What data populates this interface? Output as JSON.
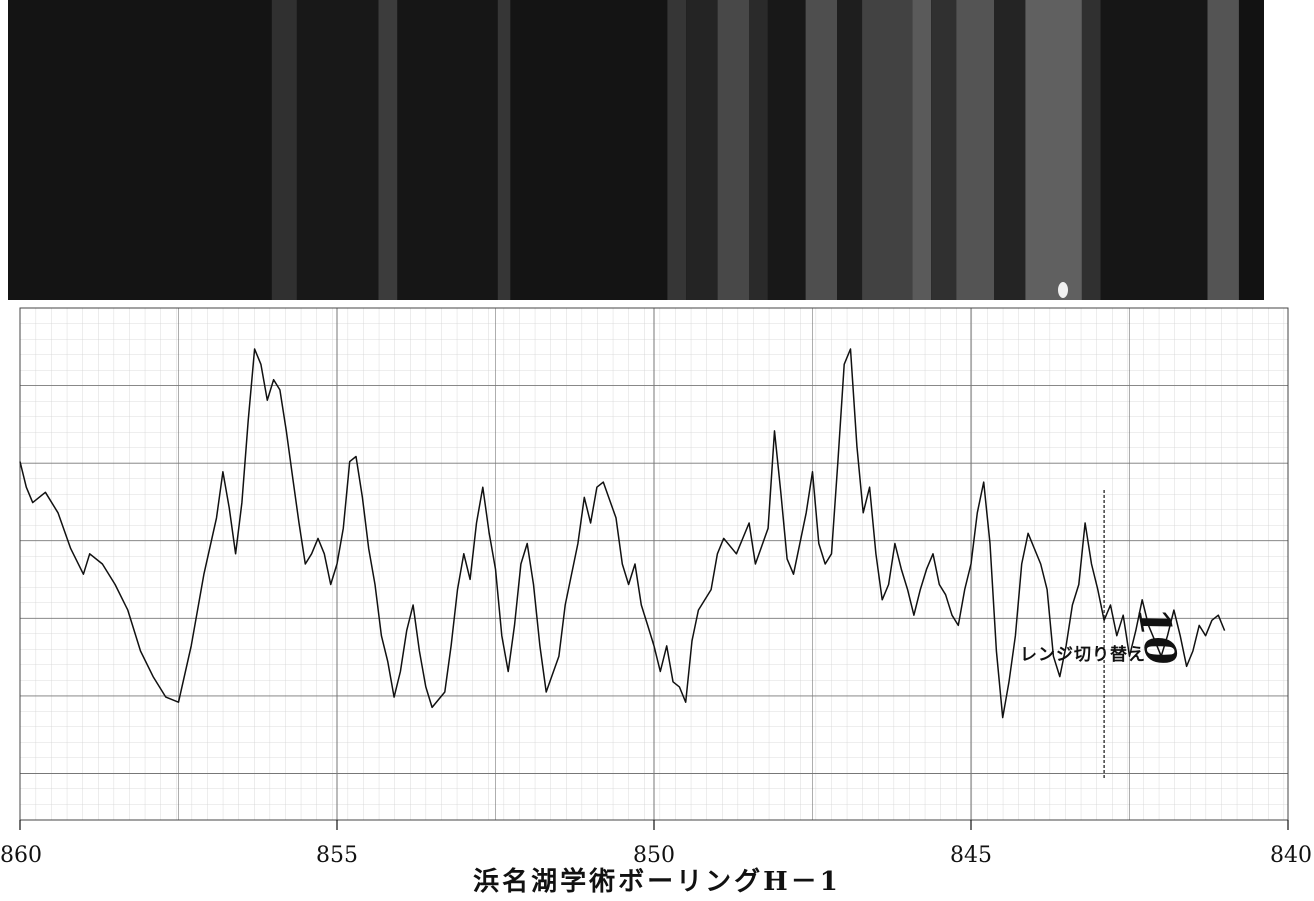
{
  "colors": {
    "paper": "#ffffff",
    "grid_minor": "#d2d2d2",
    "grid_major": "#777777",
    "trace": "#111111",
    "core_dark": "#121212",
    "core_light": "#5c5c5c"
  },
  "core_photo": {
    "bands": [
      {
        "x": 860.0,
        "w": 4.2,
        "tone": 0.02
      },
      {
        "x": 855.8,
        "w": 0.4,
        "tone": 0.25
      },
      {
        "x": 855.4,
        "w": 1.3,
        "tone": 0.05
      },
      {
        "x": 854.1,
        "w": 0.3,
        "tone": 0.35
      },
      {
        "x": 853.8,
        "w": 1.6,
        "tone": 0.03
      },
      {
        "x": 852.2,
        "w": 0.2,
        "tone": 0.3
      },
      {
        "x": 852.0,
        "w": 2.5,
        "tone": 0.02
      },
      {
        "x": 849.5,
        "w": 0.3,
        "tone": 0.3
      },
      {
        "x": 849.2,
        "w": 0.5,
        "tone": 0.15
      },
      {
        "x": 848.7,
        "w": 0.5,
        "tone": 0.45
      },
      {
        "x": 848.2,
        "w": 0.3,
        "tone": 0.2
      },
      {
        "x": 847.9,
        "w": 0.6,
        "tone": 0.05
      },
      {
        "x": 847.3,
        "w": 0.5,
        "tone": 0.5
      },
      {
        "x": 846.8,
        "w": 0.4,
        "tone": 0.1
      },
      {
        "x": 846.4,
        "w": 0.8,
        "tone": 0.4
      },
      {
        "x": 845.6,
        "w": 0.3,
        "tone": 0.6
      },
      {
        "x": 845.3,
        "w": 0.4,
        "tone": 0.25
      },
      {
        "x": 844.9,
        "w": 0.6,
        "tone": 0.55
      },
      {
        "x": 844.3,
        "w": 0.5,
        "tone": 0.15
      },
      {
        "x": 843.8,
        "w": 0.9,
        "tone": 0.65
      },
      {
        "x": 842.9,
        "w": 0.3,
        "tone": 0.25
      },
      {
        "x": 842.6,
        "w": 1.7,
        "tone": 0.03
      },
      {
        "x": 840.9,
        "w": 0.5,
        "tone": 0.55
      }
    ]
  },
  "chart_data": {
    "type": "line",
    "x_axis": {
      "ticks": [
        860,
        855,
        850,
        845,
        840
      ],
      "tick_labels": [
        "860",
        "855",
        "850",
        "845",
        "840"
      ],
      "reversed": true,
      "range": [
        860,
        840
      ]
    },
    "y_range": [
      0,
      10
    ],
    "title": "浜名湖学術ボーリングH－1",
    "annotation": "レンジ切り替え",
    "handwritten_mark": "10",
    "range_switch_x": 842.9,
    "series": [
      {
        "points": [
          [
            860.0,
            7.0
          ],
          [
            859.9,
            6.5
          ],
          [
            859.8,
            6.2
          ],
          [
            859.6,
            6.4
          ],
          [
            859.4,
            6.0
          ],
          [
            859.2,
            5.3
          ],
          [
            859.0,
            4.8
          ],
          [
            858.9,
            5.2
          ],
          [
            858.7,
            5.0
          ],
          [
            858.5,
            4.6
          ],
          [
            858.3,
            4.1
          ],
          [
            858.1,
            3.3
          ],
          [
            857.9,
            2.8
          ],
          [
            857.7,
            2.4
          ],
          [
            857.5,
            2.3
          ],
          [
            857.3,
            3.4
          ],
          [
            857.1,
            4.8
          ],
          [
            856.9,
            5.9
          ],
          [
            856.8,
            6.8
          ],
          [
            856.7,
            6.1
          ],
          [
            856.6,
            5.2
          ],
          [
            856.5,
            6.2
          ],
          [
            856.4,
            7.8
          ],
          [
            856.3,
            9.2
          ],
          [
            856.2,
            8.9
          ],
          [
            856.1,
            8.2
          ],
          [
            856.0,
            8.6
          ],
          [
            855.9,
            8.4
          ],
          [
            855.8,
            7.6
          ],
          [
            855.7,
            6.7
          ],
          [
            855.6,
            5.8
          ],
          [
            855.5,
            5.0
          ],
          [
            855.4,
            5.2
          ],
          [
            855.3,
            5.5
          ],
          [
            855.2,
            5.2
          ],
          [
            855.1,
            4.6
          ],
          [
            855.0,
            5.0
          ],
          [
            854.9,
            5.7
          ],
          [
            854.8,
            7.0
          ],
          [
            854.7,
            7.1
          ],
          [
            854.6,
            6.3
          ],
          [
            854.5,
            5.3
          ],
          [
            854.4,
            4.6
          ],
          [
            854.3,
            3.6
          ],
          [
            854.2,
            3.1
          ],
          [
            854.1,
            2.4
          ],
          [
            854.0,
            2.9
          ],
          [
            853.9,
            3.7
          ],
          [
            853.8,
            4.2
          ],
          [
            853.7,
            3.3
          ],
          [
            853.6,
            2.6
          ],
          [
            853.5,
            2.2
          ],
          [
            853.3,
            2.5
          ],
          [
            853.2,
            3.4
          ],
          [
            853.1,
            4.5
          ],
          [
            853.0,
            5.2
          ],
          [
            852.9,
            4.7
          ],
          [
            852.8,
            5.8
          ],
          [
            852.7,
            6.5
          ],
          [
            852.6,
            5.6
          ],
          [
            852.5,
            4.9
          ],
          [
            852.4,
            3.6
          ],
          [
            852.3,
            2.9
          ],
          [
            852.2,
            3.8
          ],
          [
            852.1,
            5.0
          ],
          [
            852.0,
            5.4
          ],
          [
            851.9,
            4.6
          ],
          [
            851.8,
            3.4
          ],
          [
            851.7,
            2.5
          ],
          [
            851.5,
            3.2
          ],
          [
            851.4,
            4.2
          ],
          [
            851.2,
            5.4
          ],
          [
            851.1,
            6.3
          ],
          [
            851.0,
            5.8
          ],
          [
            850.9,
            6.5
          ],
          [
            850.8,
            6.6
          ],
          [
            850.6,
            5.9
          ],
          [
            850.5,
            5.0
          ],
          [
            850.4,
            4.6
          ],
          [
            850.3,
            5.0
          ],
          [
            850.2,
            4.2
          ],
          [
            850.1,
            3.8
          ],
          [
            850.0,
            3.4
          ],
          [
            849.9,
            2.9
          ],
          [
            849.8,
            3.4
          ],
          [
            849.7,
            2.7
          ],
          [
            849.6,
            2.6
          ],
          [
            849.5,
            2.3
          ],
          [
            849.4,
            3.5
          ],
          [
            849.3,
            4.1
          ],
          [
            849.1,
            4.5
          ],
          [
            849.0,
            5.2
          ],
          [
            848.9,
            5.5
          ],
          [
            848.7,
            5.2
          ],
          [
            848.5,
            5.8
          ],
          [
            848.4,
            5.0
          ],
          [
            848.2,
            5.7
          ],
          [
            848.1,
            7.6
          ],
          [
            848.0,
            6.4
          ],
          [
            847.9,
            5.1
          ],
          [
            847.8,
            4.8
          ],
          [
            847.6,
            6.0
          ],
          [
            847.5,
            6.8
          ],
          [
            847.4,
            5.4
          ],
          [
            847.3,
            5.0
          ],
          [
            847.2,
            5.2
          ],
          [
            847.1,
            7.0
          ],
          [
            847.0,
            8.9
          ],
          [
            846.9,
            9.2
          ],
          [
            846.8,
            7.3
          ],
          [
            846.7,
            6.0
          ],
          [
            846.6,
            6.5
          ],
          [
            846.5,
            5.2
          ],
          [
            846.4,
            4.3
          ],
          [
            846.3,
            4.6
          ],
          [
            846.2,
            5.4
          ],
          [
            846.1,
            4.9
          ],
          [
            846.0,
            4.5
          ],
          [
            845.9,
            4.0
          ],
          [
            845.8,
            4.5
          ],
          [
            845.7,
            4.9
          ],
          [
            845.6,
            5.2
          ],
          [
            845.5,
            4.6
          ],
          [
            845.4,
            4.4
          ],
          [
            845.3,
            4.0
          ],
          [
            845.2,
            3.8
          ],
          [
            845.1,
            4.5
          ],
          [
            845.0,
            5.0
          ],
          [
            844.9,
            6.0
          ],
          [
            844.8,
            6.6
          ],
          [
            844.7,
            5.4
          ],
          [
            844.6,
            3.3
          ],
          [
            844.5,
            2.0
          ],
          [
            844.4,
            2.7
          ],
          [
            844.3,
            3.6
          ],
          [
            844.2,
            5.0
          ],
          [
            844.1,
            5.6
          ],
          [
            843.9,
            5.0
          ],
          [
            843.8,
            4.5
          ],
          [
            843.7,
            3.2
          ],
          [
            843.6,
            2.8
          ],
          [
            843.5,
            3.4
          ],
          [
            843.4,
            4.2
          ],
          [
            843.3,
            4.6
          ],
          [
            843.2,
            5.8
          ],
          [
            843.1,
            5.0
          ],
          [
            843.0,
            4.5
          ],
          [
            842.9,
            3.9
          ],
          [
            842.8,
            4.2
          ],
          [
            842.7,
            3.6
          ],
          [
            842.6,
            4.0
          ],
          [
            842.5,
            3.2
          ],
          [
            842.4,
            3.7
          ],
          [
            842.3,
            4.3
          ],
          [
            842.2,
            3.8
          ],
          [
            842.1,
            3.5
          ],
          [
            842.0,
            3.2
          ],
          [
            841.9,
            3.6
          ],
          [
            841.8,
            4.1
          ],
          [
            841.7,
            3.6
          ],
          [
            841.6,
            3.0
          ],
          [
            841.5,
            3.3
          ],
          [
            841.4,
            3.8
          ],
          [
            841.3,
            3.6
          ],
          [
            841.2,
            3.9
          ],
          [
            841.1,
            4.0
          ],
          [
            841.0,
            3.7
          ]
        ]
      }
    ]
  }
}
